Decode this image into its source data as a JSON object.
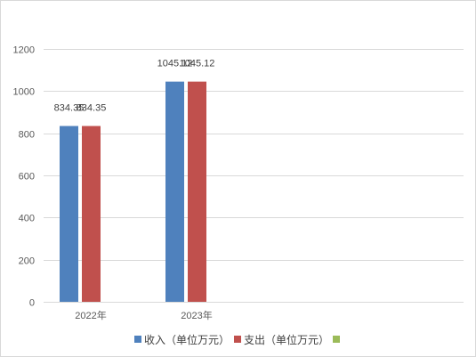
{
  "chart_data": {
    "type": "bar",
    "categories": [
      "2022年",
      "2023年"
    ],
    "series": [
      {
        "name": "收入（单位万元）",
        "values": [
          834.35,
          1045.12
        ],
        "color": "#4f81bd"
      },
      {
        "name": "支出（单位万元）",
        "values": [
          834.35,
          1045.12
        ],
        "color": "#c0504d"
      },
      {
        "name": "",
        "values": [
          null,
          null
        ],
        "color": "#9bbb59"
      }
    ],
    "title": "",
    "xlabel": "",
    "ylabel": "",
    "ylim": [
      0,
      1200
    ],
    "yticks": [
      0,
      200,
      400,
      600,
      800,
      1000,
      1200
    ],
    "grid": true,
    "legend": "bottom",
    "grid_color": "#d9d9d9"
  }
}
